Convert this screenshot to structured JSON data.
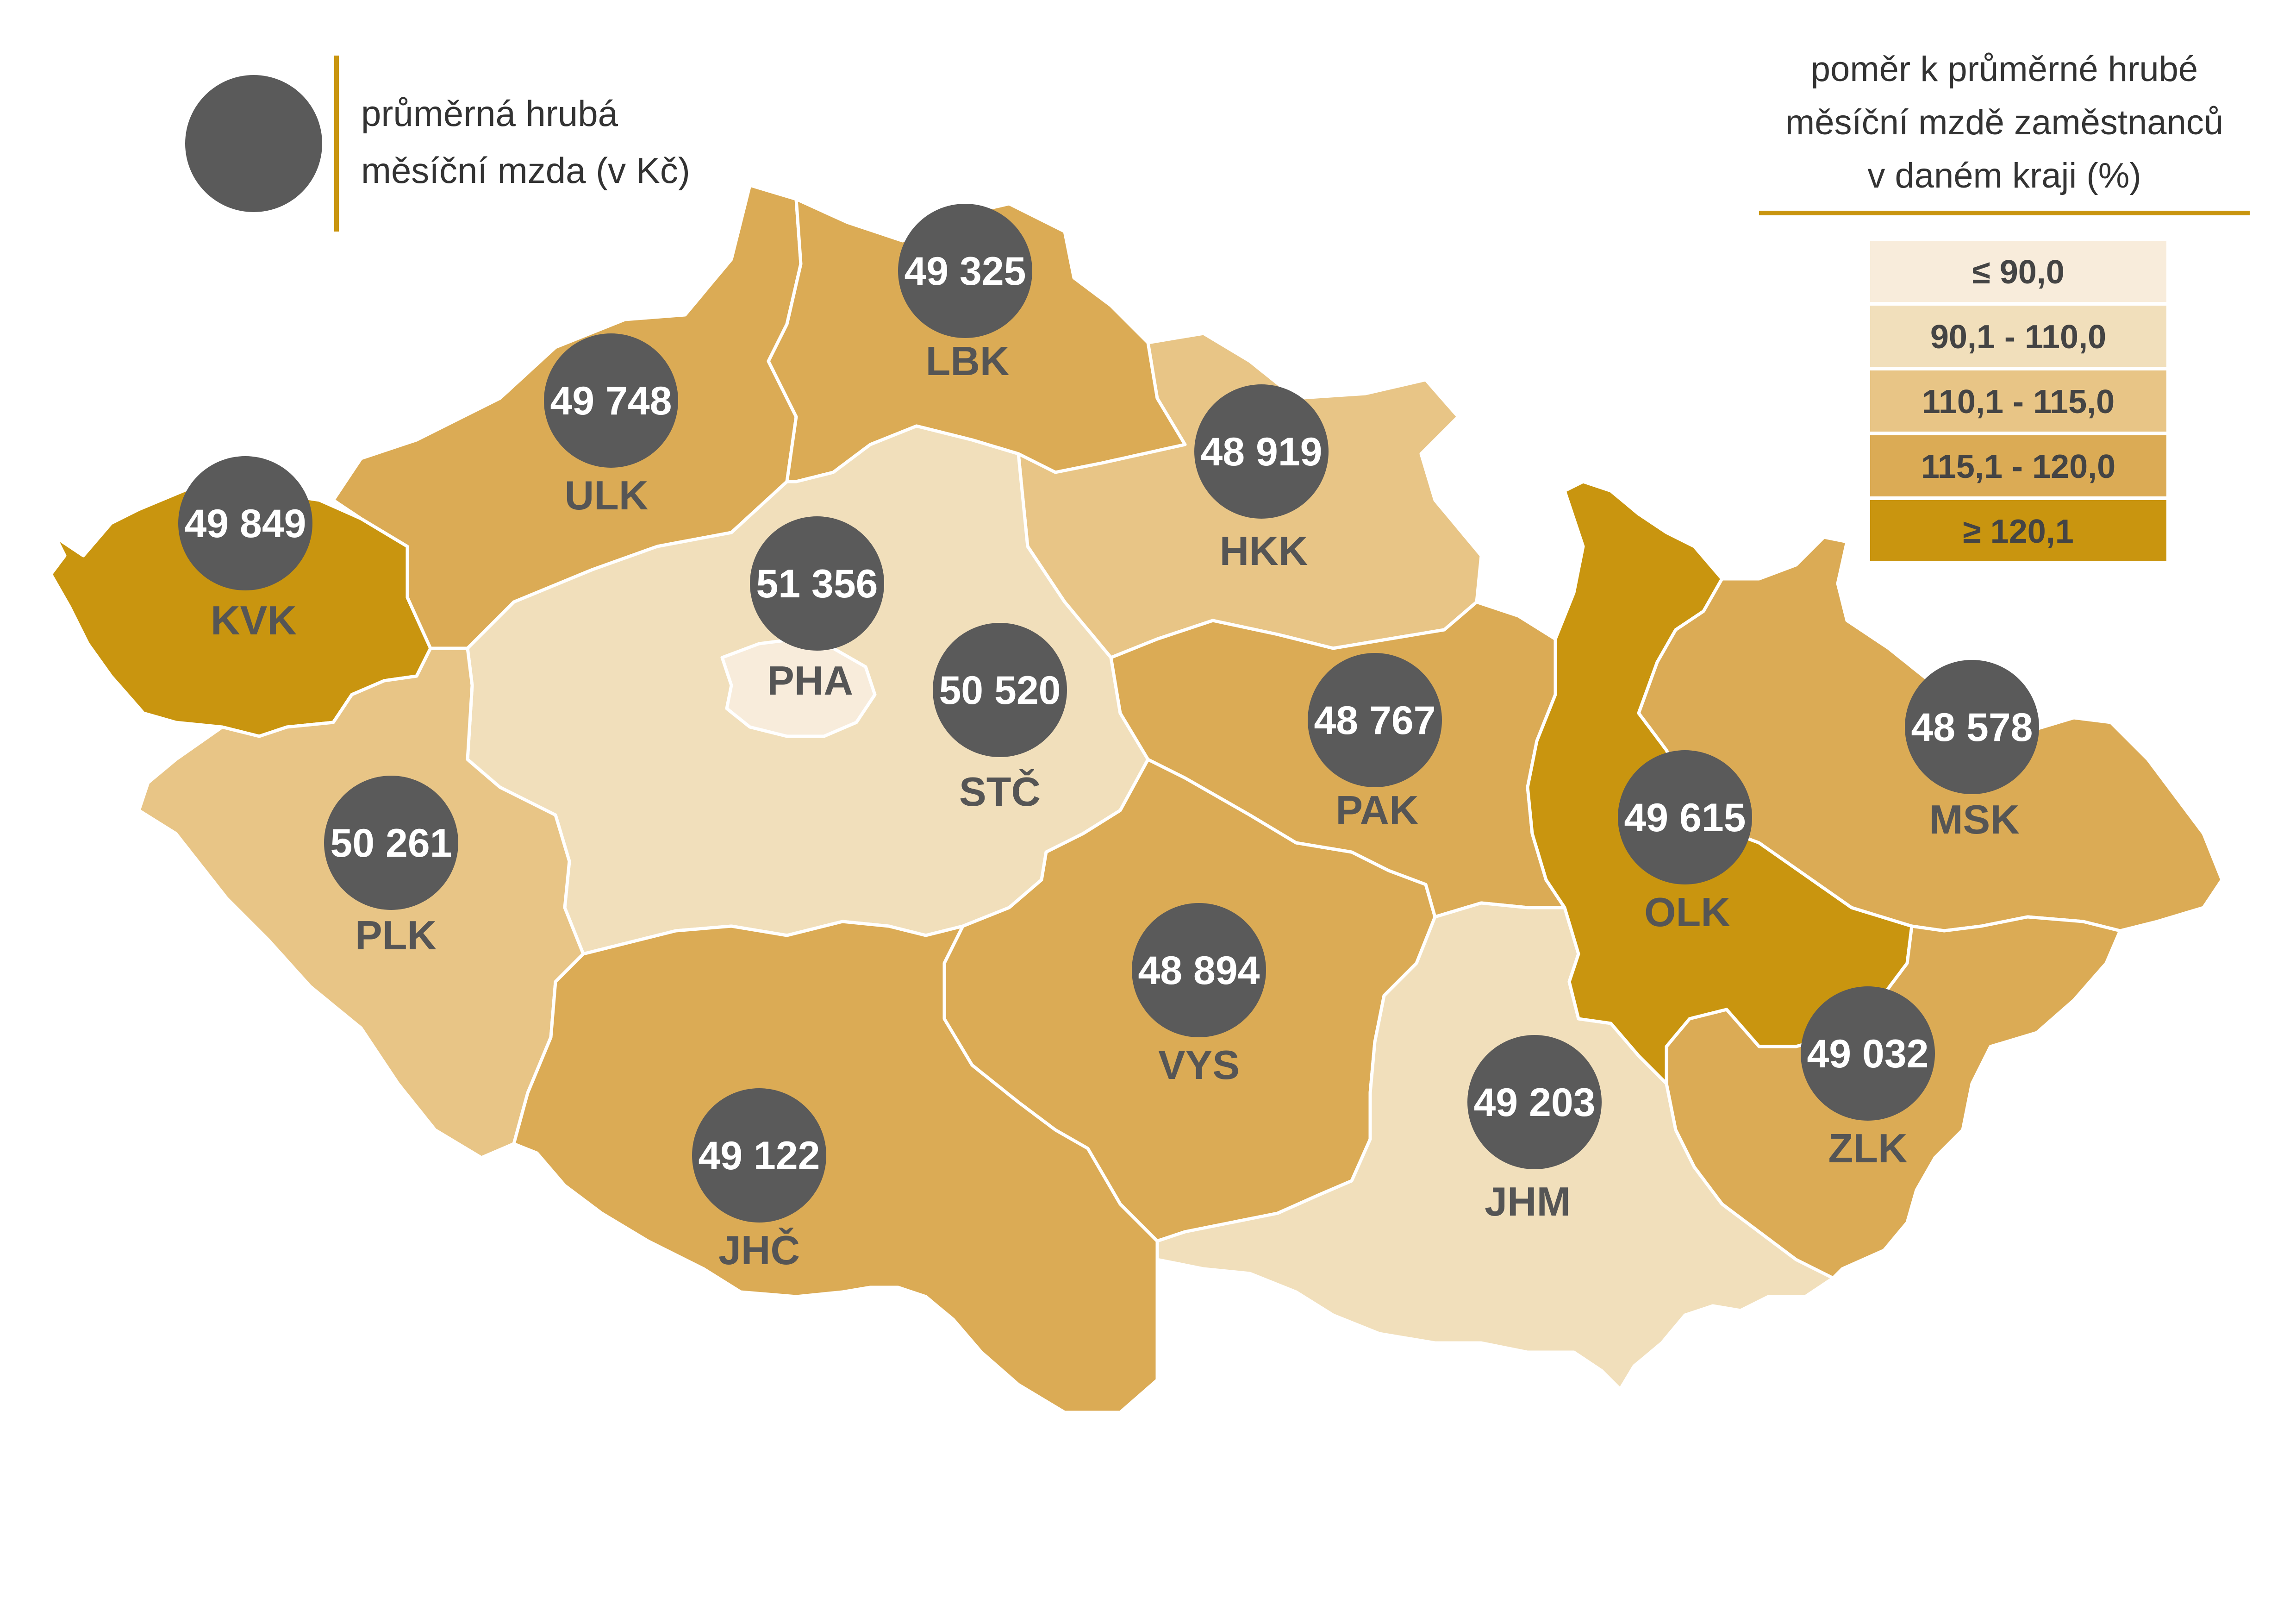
{
  "legend_bubble": {
    "line1": "průměrná hrubá",
    "line2": "měsíční mzda (v Kč)"
  },
  "legend_classes": {
    "title_line1": "poměr k průměrné hrubé",
    "title_line2": "měsíční mzdě zaměstnanců",
    "title_line3": "v daném kraji (%)",
    "items": [
      {
        "label": "≤  90,0",
        "color": "#f8ecdb"
      },
      {
        "label": "90,1 - 110,0",
        "color": "#f1dfbb"
      },
      {
        "label": "110,1 - 115,0",
        "color": "#e8c586"
      },
      {
        "label": "115,1 - 120,0",
        "color": "#dbab55"
      },
      {
        "label": "≥ 120,1",
        "color": "#c9950f"
      }
    ]
  },
  "colors": {
    "bubble": "#5a5a5a",
    "accent_line": "#c9950f"
  },
  "regions": [
    {
      "code": "KVK",
      "value": "49 849",
      "class": 4
    },
    {
      "code": "ULK",
      "value": "49 748",
      "class": 3
    },
    {
      "code": "LBK",
      "value": "49 325",
      "class": 3
    },
    {
      "code": "HKK",
      "value": "48 919",
      "class": 2
    },
    {
      "code": "PHA",
      "value": "51 356",
      "class": 0
    },
    {
      "code": "STČ",
      "value": "50 520",
      "class": 1
    },
    {
      "code": "PLK",
      "value": "50 261",
      "class": 2
    },
    {
      "code": "PAK",
      "value": "48 767",
      "class": 3
    },
    {
      "code": "VYS",
      "value": "48 894",
      "class": 3
    },
    {
      "code": "JHČ",
      "value": "49 122",
      "class": 3
    },
    {
      "code": "JHM",
      "value": "49 203",
      "class": 1
    },
    {
      "code": "OLK",
      "value": "49 615",
      "class": 4
    },
    {
      "code": "MSK",
      "value": "48 578",
      "class": 3
    },
    {
      "code": "ZLK",
      "value": "49 032",
      "class": 3
    }
  ]
}
